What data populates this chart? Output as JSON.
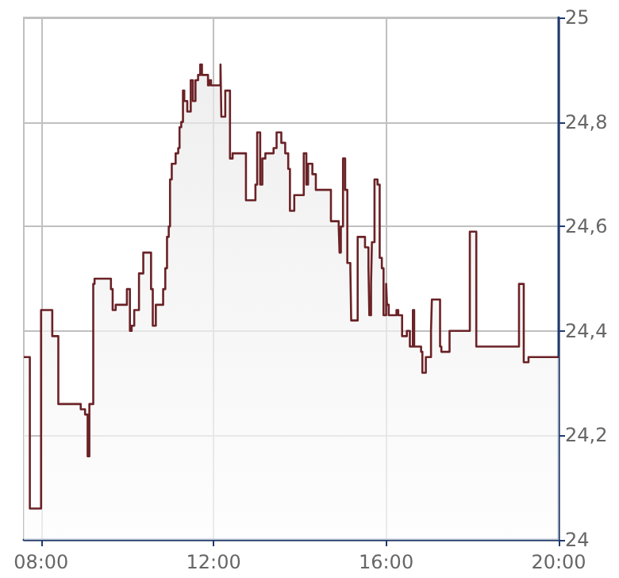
{
  "chart_data": {
    "type": "area",
    "color": "#6b2226",
    "x": [
      7.6,
      7.74,
      7.74,
      8.0,
      8.0,
      8.26,
      8.26,
      8.4,
      8.4,
      8.92,
      8.92,
      9.02,
      9.02,
      9.08,
      9.08,
      9.12,
      9.12,
      9.21,
      9.21,
      9.24,
      9.24,
      9.62,
      9.62,
      9.66,
      9.66,
      9.73,
      9.73,
      9.99,
      9.99,
      10.06,
      10.06,
      10.1,
      10.1,
      10.16,
      10.16,
      10.27,
      10.27,
      10.37,
      10.37,
      10.55,
      10.55,
      10.59,
      10.59,
      10.66,
      10.66,
      10.83,
      10.83,
      10.88,
      10.88,
      10.92,
      10.92,
      10.96,
      10.96,
      10.99,
      10.99,
      11.03,
      11.03,
      11.12,
      11.12,
      11.18,
      11.18,
      11.21,
      11.21,
      11.25,
      11.25,
      11.29,
      11.29,
      11.32,
      11.32,
      11.39,
      11.39,
      11.47,
      11.47,
      11.52,
      11.52,
      11.58,
      11.58,
      11.64,
      11.64,
      11.69,
      11.69,
      11.73,
      11.73,
      11.87,
      11.87,
      11.9,
      11.9,
      11.94,
      11.94,
      12.16,
      12.16,
      12.18,
      12.18,
      12.27,
      12.27,
      12.38,
      12.38,
      12.44,
      12.44,
      12.75,
      12.75,
      12.97,
      12.97,
      13.01,
      13.01,
      13.08,
      13.08,
      13.13,
      13.13,
      13.2,
      13.2,
      13.39,
      13.39,
      13.46,
      13.46,
      13.57,
      13.57,
      13.66,
      13.66,
      13.73,
      13.73,
      13.77,
      13.77,
      13.87,
      13.87,
      14.09,
      14.09,
      14.15,
      14.15,
      14.19,
      14.19,
      14.29,
      14.29,
      14.37,
      14.37,
      14.72,
      14.72,
      14.9,
      14.9,
      14.92,
      14.92,
      14.95,
      14.95,
      15.0,
      15.0,
      15.05,
      15.05,
      15.1,
      15.1,
      15.17,
      15.17,
      15.19,
      15.19,
      15.34,
      15.34,
      15.51,
      15.51,
      15.59,
      15.59,
      15.61,
      15.61,
      15.65,
      15.65,
      15.67,
      15.67,
      15.73,
      15.73,
      15.8,
      15.8,
      15.85,
      15.85,
      15.9,
      15.9,
      15.94,
      15.94,
      16.0,
      16.0,
      16.02,
      16.02,
      16.06,
      16.06,
      16.24,
      16.24,
      16.28,
      16.28,
      16.37,
      16.37,
      16.48,
      16.48,
      16.55,
      16.55,
      16.62,
      16.62,
      16.65,
      16.65,
      16.81,
      16.81,
      16.84,
      16.84,
      16.92,
      16.92,
      17.04,
      17.04,
      17.06,
      17.06,
      17.25,
      17.25,
      17.28,
      17.28,
      17.47,
      17.47,
      17.94,
      17.94,
      18.09,
      18.09,
      19.08,
      19.08,
      19.19,
      19.19,
      19.3,
      19.3,
      20.0
    ],
    "values": [
      24.35,
      24.35,
      24.06,
      24.06,
      24.44,
      24.44,
      24.39,
      24.39,
      24.26,
      24.26,
      24.25,
      24.25,
      24.24,
      24.24,
      24.16,
      24.16,
      24.26,
      24.26,
      24.49,
      24.49,
      24.5,
      24.5,
      24.48,
      24.48,
      24.44,
      24.44,
      24.45,
      24.45,
      24.48,
      24.48,
      24.4,
      24.4,
      24.41,
      24.41,
      24.44,
      24.44,
      24.51,
      24.51,
      24.55,
      24.55,
      24.48,
      24.48,
      24.41,
      24.41,
      24.45,
      24.45,
      24.48,
      24.48,
      24.52,
      24.52,
      24.58,
      24.58,
      24.6,
      24.6,
      24.69,
      24.69,
      24.72,
      24.72,
      24.74,
      24.74,
      24.75,
      24.75,
      24.79,
      24.79,
      24.8,
      24.8,
      24.86,
      24.86,
      24.84,
      24.84,
      24.82,
      24.82,
      24.88,
      24.88,
      24.84,
      24.84,
      24.88,
      24.88,
      24.89,
      24.89,
      24.91,
      24.91,
      24.89,
      24.89,
      24.87,
      24.87,
      24.88,
      24.88,
      24.87,
      24.87,
      24.91,
      24.91,
      24.81,
      24.81,
      24.86,
      24.86,
      24.73,
      24.73,
      24.74,
      24.74,
      24.65,
      24.65,
      24.68,
      24.68,
      24.78,
      24.78,
      24.68,
      24.68,
      24.73,
      24.73,
      24.74,
      24.74,
      24.75,
      24.75,
      24.78,
      24.78,
      24.76,
      24.76,
      24.74,
      24.74,
      24.71,
      24.71,
      24.63,
      24.63,
      24.66,
      24.66,
      24.74,
      24.74,
      24.68,
      24.68,
      24.72,
      24.72,
      24.7,
      24.7,
      24.67,
      24.67,
      24.61,
      24.61,
      24.6,
      24.6,
      24.55,
      24.55,
      24.6,
      24.6,
      24.73,
      24.73,
      24.67,
      24.67,
      24.53,
      24.53,
      24.52,
      24.52,
      24.42,
      24.42,
      24.58,
      24.58,
      24.56,
      24.56,
      24.52,
      24.52,
      24.43,
      24.43,
      24.49,
      24.49,
      24.57,
      24.57,
      24.69,
      24.69,
      24.68,
      24.68,
      24.54,
      24.54,
      24.52,
      24.52,
      24.43,
      24.43,
      24.49,
      24.49,
      24.45,
      24.45,
      24.43,
      24.43,
      24.44,
      24.44,
      24.43,
      24.43,
      24.39,
      24.39,
      24.4,
      24.4,
      24.37,
      24.37,
      24.44,
      24.44,
      24.37,
      24.37,
      24.36,
      24.36,
      24.32,
      24.32,
      24.35,
      24.35,
      24.4,
      24.4,
      24.46,
      24.46,
      24.37,
      24.37,
      24.36,
      24.36,
      24.4,
      24.4,
      24.59,
      24.59,
      24.37,
      24.37,
      24.49,
      24.49,
      24.34,
      24.34,
      24.35,
      24.35
    ],
    "xlim": [
      7.6,
      20
    ],
    "xticks": [
      {
        "value": 8,
        "label": "08:00"
      },
      {
        "value": 12,
        "label": "12:00"
      },
      {
        "value": 16,
        "label": "16:00"
      },
      {
        "value": 20,
        "label": "20:00"
      }
    ],
    "ylim": [
      24,
      25
    ],
    "yticks": [
      {
        "value": 24,
        "label": "24"
      },
      {
        "value": 24.2,
        "label": "24,2"
      },
      {
        "value": 24.4,
        "label": "24,4"
      },
      {
        "value": 24.6,
        "label": "24,6"
      },
      {
        "value": 24.8,
        "label": "24,8"
      },
      {
        "value": 25,
        "label": "25"
      }
    ],
    "grid": true,
    "marker": "none",
    "line_style": "solid"
  }
}
